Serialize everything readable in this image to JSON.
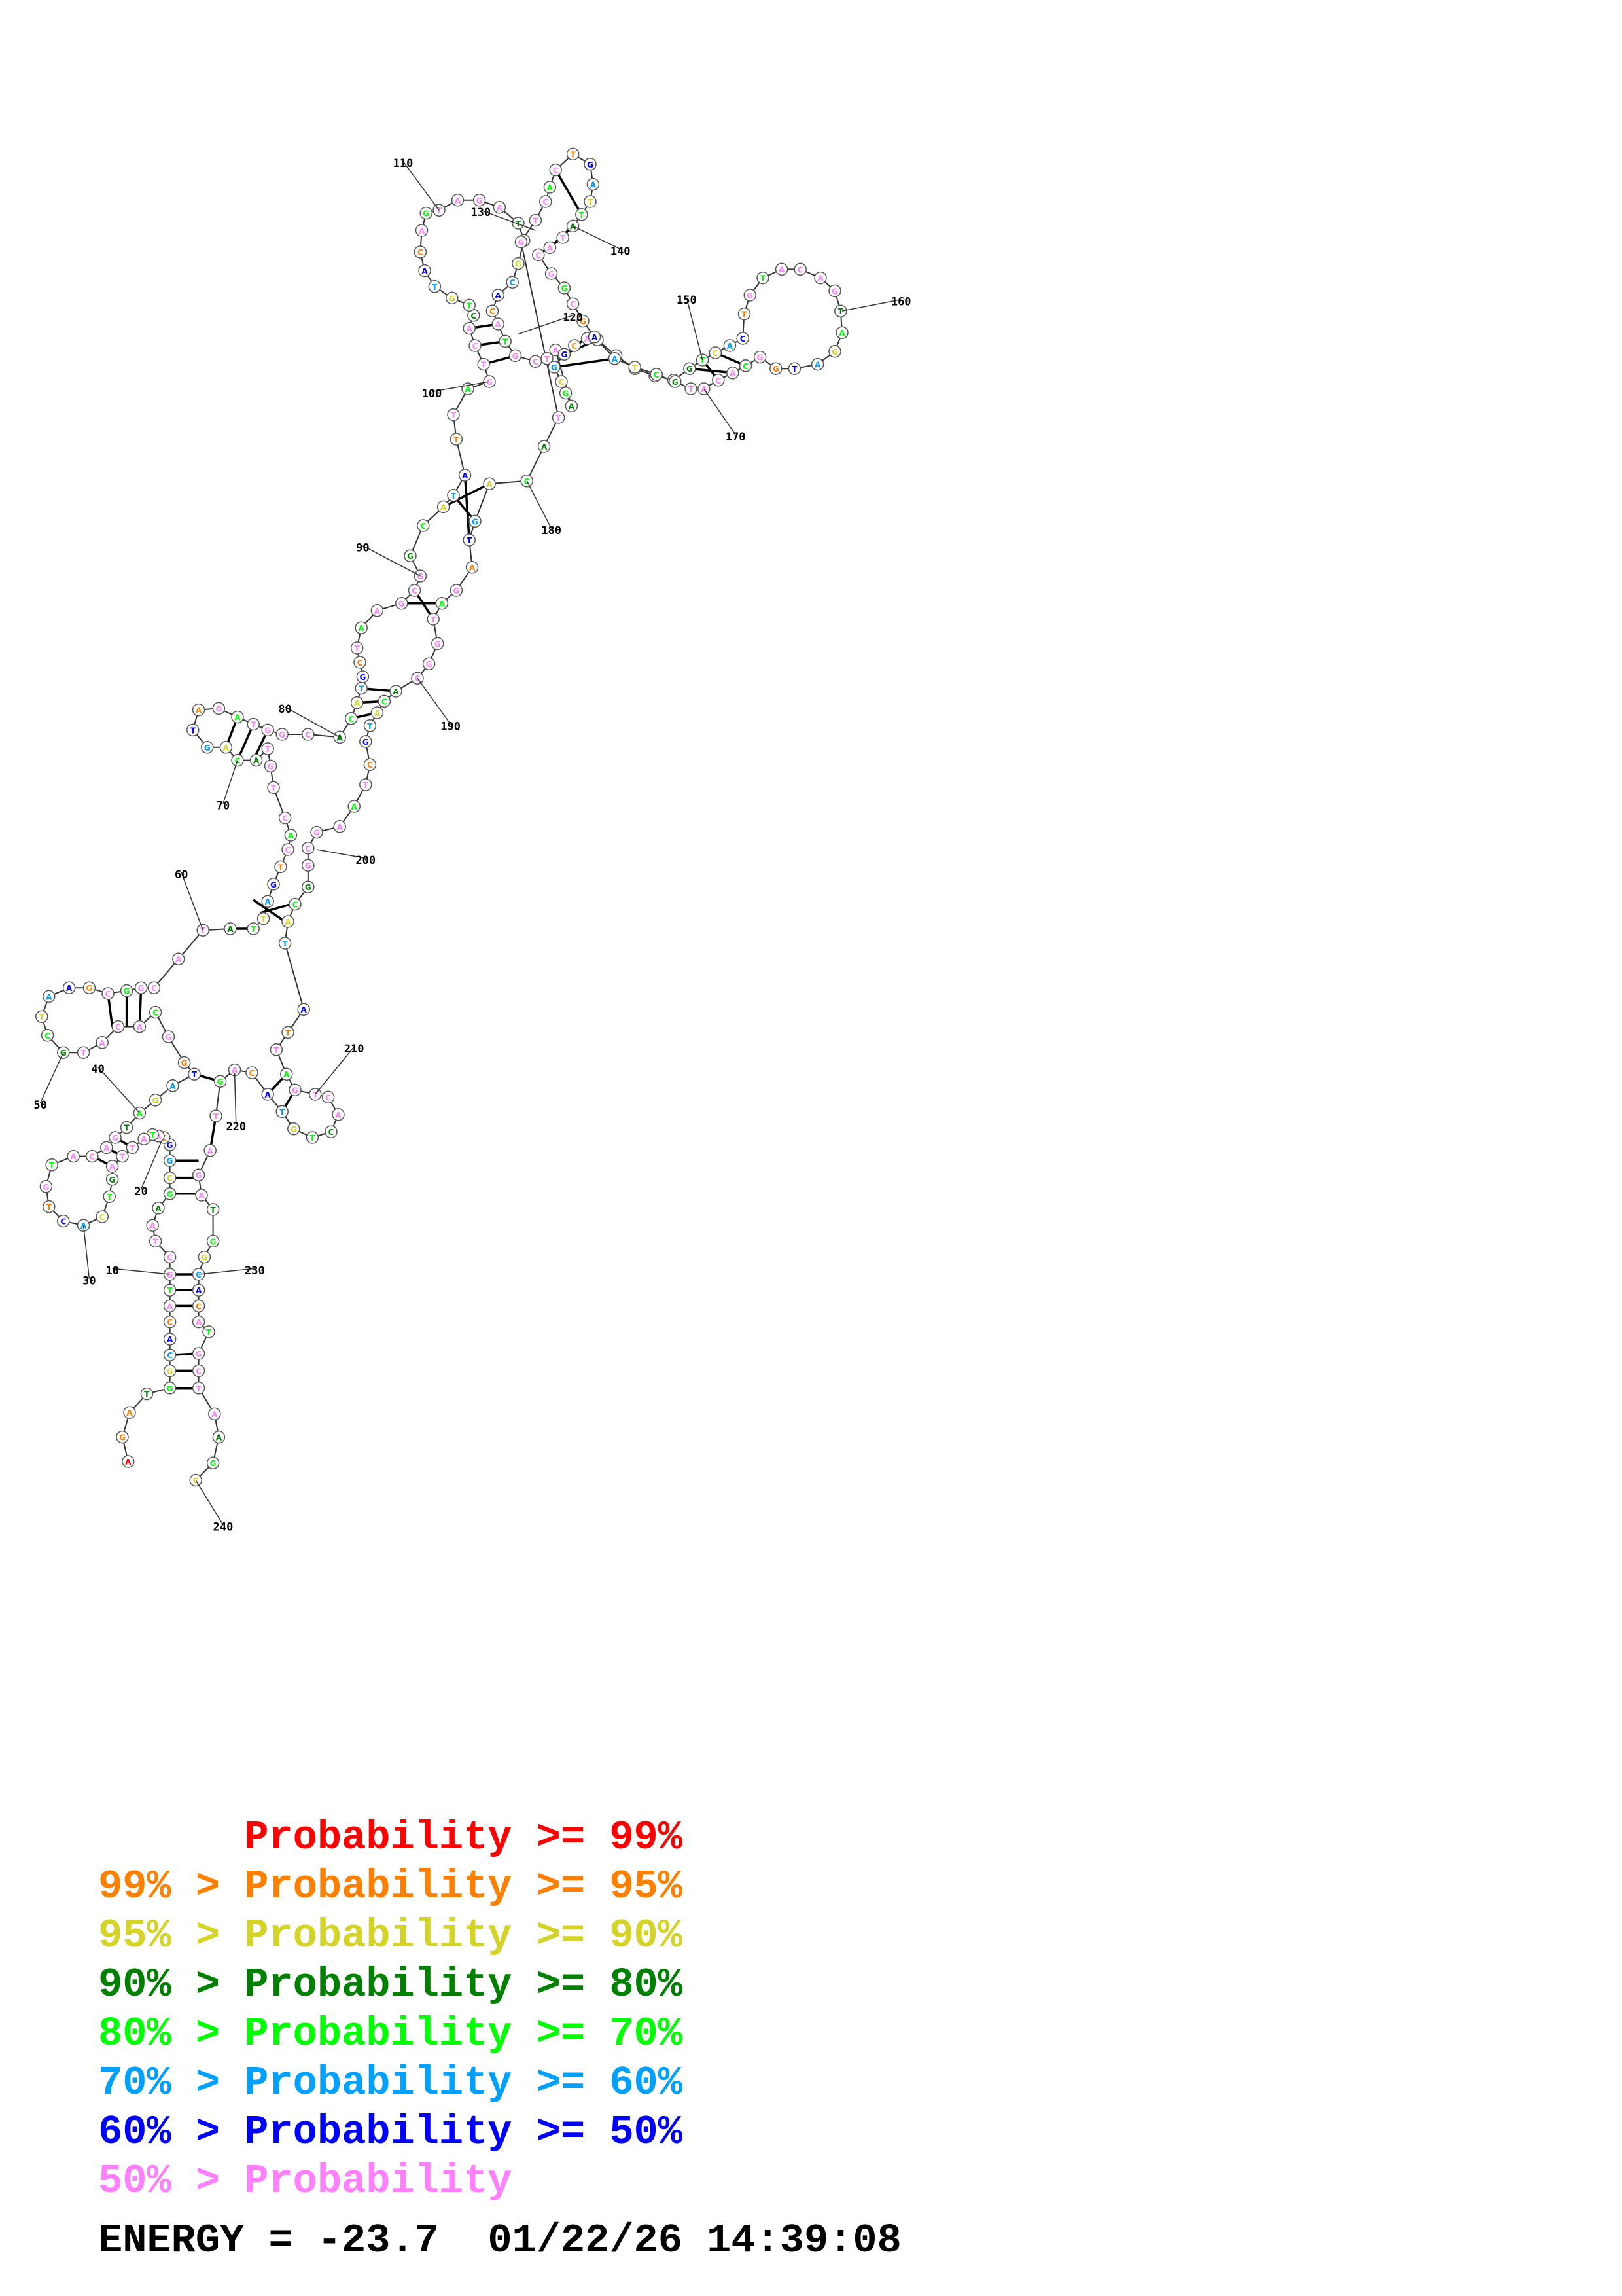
{
  "legend": [
    {
      "prefix": "",
      "label": "Probability >= 99%",
      "color": "#ff0000"
    },
    {
      "prefix": "99% > ",
      "label": "Probability >= 95%",
      "color": "#ff8000"
    },
    {
      "prefix": "95% > ",
      "label": "Probability >= 90%",
      "color": "#d4d428"
    },
    {
      "prefix": "90% > ",
      "label": "Probability >= 80%",
      "color": "#008000"
    },
    {
      "prefix": "80% > ",
      "label": "Probability >= 70%",
      "color": "#00ff00"
    },
    {
      "prefix": "70% > ",
      "label": "Probability >= 60%",
      "color": "#00a0ff"
    },
    {
      "prefix": "60% > ",
      "label": "Probability >= 50%",
      "color": "#0000ff"
    },
    {
      "prefix": "50% > ",
      "label": "Probability",
      "color": "#ff80ff"
    }
  ],
  "footer": {
    "energy": "ENERGY = -23.7",
    "timestamp": "01/22/26 14:39:08"
  },
  "position_labels": [
    "10",
    "20",
    "30",
    "40",
    "50",
    "60",
    "70",
    "80",
    "90",
    "100",
    "110",
    "120",
    "130",
    "140",
    "150",
    "160",
    "170",
    "180",
    "190",
    "200",
    "210",
    "220",
    "230",
    "240"
  ],
  "visible_bases": [
    "A",
    "G",
    "A",
    "T",
    "G",
    "G",
    "C",
    "A",
    "C",
    "A",
    "T",
    "G",
    "C",
    "T",
    "A",
    "A",
    "G",
    "C",
    "G",
    "G",
    "C",
    "A",
    "T",
    "A",
    "T",
    "T",
    "A",
    "G",
    "T",
    "C",
    "A",
    "C",
    "T",
    "G",
    "T",
    "A",
    "C",
    "A",
    "G",
    "T"
  ],
  "probability_colors": {
    "p99": "#ff0000",
    "p95": "#ff8000",
    "p90": "#d4d428",
    "p80": "#008000",
    "p70": "#00ff00",
    "p60": "#00a0ff",
    "p50": "#0000ff",
    "plow": "#ff80ff"
  }
}
